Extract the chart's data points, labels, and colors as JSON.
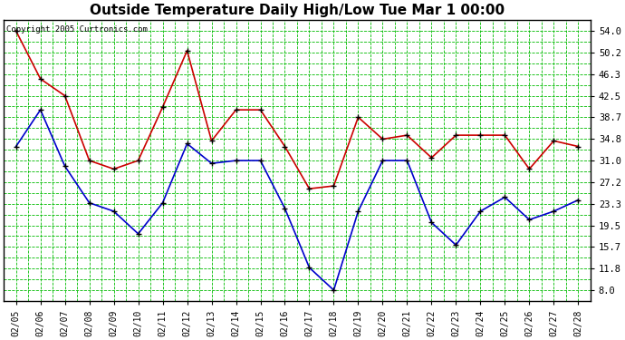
{
  "title": "Outside Temperature Daily High/Low Tue Mar 1 00:00",
  "copyright": "Copyright 2005 Curtronics.com",
  "dates": [
    "02/05",
    "02/06",
    "02/07",
    "02/08",
    "02/09",
    "02/10",
    "02/11",
    "02/12",
    "02/13",
    "02/14",
    "02/15",
    "02/16",
    "02/17",
    "02/18",
    "02/19",
    "02/20",
    "02/21",
    "02/22",
    "02/23",
    "02/24",
    "02/25",
    "02/26",
    "02/27",
    "02/28"
  ],
  "high": [
    54.0,
    45.5,
    42.5,
    31.0,
    29.5,
    31.0,
    40.5,
    50.5,
    34.5,
    40.0,
    40.0,
    33.5,
    26.0,
    26.5,
    38.7,
    34.8,
    35.5,
    31.5,
    35.5,
    35.5,
    35.5,
    29.5,
    34.5,
    33.5
  ],
  "low": [
    33.5,
    40.0,
    30.0,
    23.5,
    22.0,
    18.0,
    23.5,
    34.0,
    30.5,
    31.0,
    31.0,
    22.5,
    12.0,
    8.0,
    22.0,
    31.0,
    31.0,
    20.0,
    16.0,
    22.0,
    24.5,
    20.5,
    22.0,
    24.0
  ],
  "high_color": "#cc0000",
  "low_color": "#0000cc",
  "background_color": "#ffffff",
  "plot_bg_color": "#ffffff",
  "grid_color": "#00bb00",
  "yticks": [
    8.0,
    11.8,
    15.7,
    19.5,
    23.3,
    27.2,
    31.0,
    34.8,
    38.7,
    42.5,
    46.3,
    50.2,
    54.0
  ],
  "ylim": [
    6.0,
    56.0
  ],
  "title_fontsize": 11,
  "marker": "+",
  "markersize": 5,
  "linewidth": 1.2
}
